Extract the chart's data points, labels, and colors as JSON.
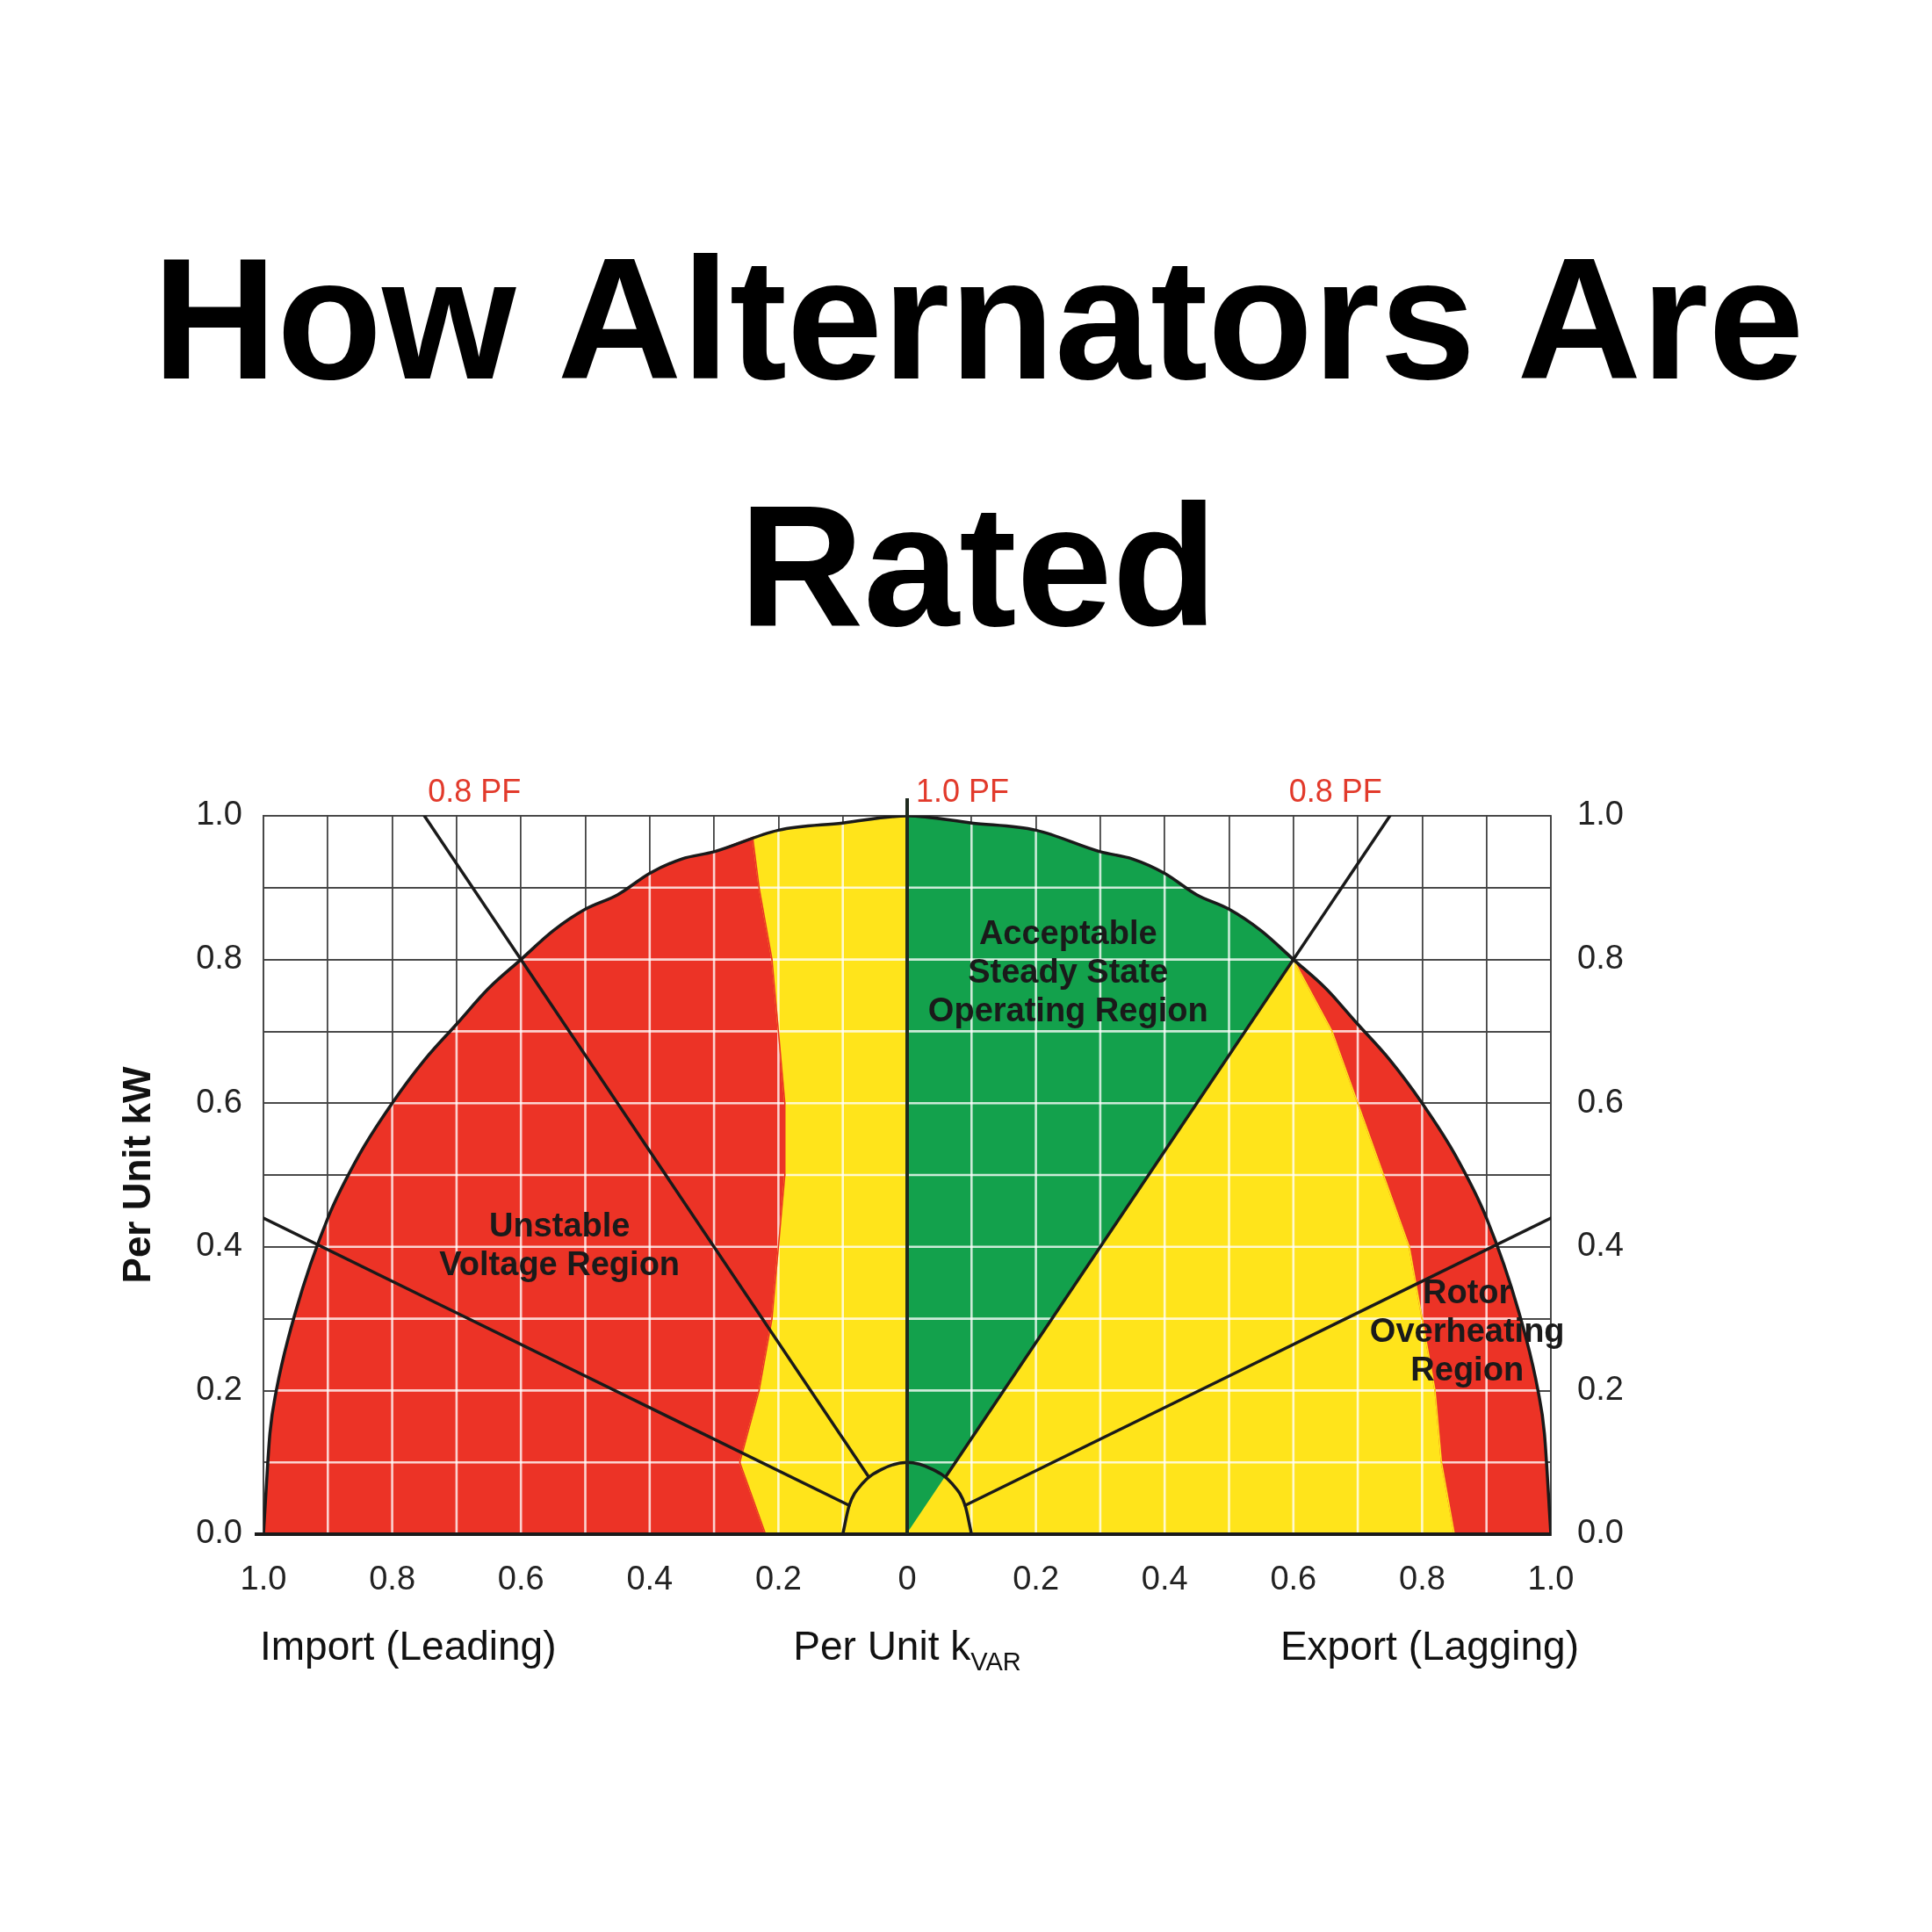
{
  "chart_data": {
    "type": "area",
    "title": "How Alternators Are Rated",
    "xlabel": "Per Unit k$_{VAR}$",
    "ylabel": "Per Unit kW",
    "xlim": [
      -1,
      1
    ],
    "ylim": [
      0,
      1
    ],
    "y2lim": [
      0,
      1
    ],
    "xticks": [
      {
        "value": -1,
        "label": "1.0"
      },
      {
        "value": -0.9,
        "label": null
      },
      {
        "value": -0.8,
        "label": "0.8"
      },
      {
        "value": -0.7,
        "label": null
      },
      {
        "value": -0.6,
        "label": "0.6"
      },
      {
        "value": -0.5,
        "label": null
      },
      {
        "value": -0.4,
        "label": "0.4"
      },
      {
        "value": -0.3,
        "label": null
      },
      {
        "value": -0.2,
        "label": "0.2"
      },
      {
        "value": -0.1,
        "label": null
      },
      0,
      {
        "value": 0.1,
        "label": null
      },
      0.2,
      {
        "value": 0.3,
        "label": null
      },
      0.4,
      {
        "value": 0.5,
        "label": null
      },
      0.6,
      {
        "value": 0.7,
        "label": null
      },
      0.8,
      {
        "value": 0.9,
        "label": null
      },
      {
        "value": 1,
        "label": "1.0"
      }
    ],
    "yticks": [
      {
        "value": 0,
        "label": "0.0"
      },
      {
        "value": 0.1,
        "label": null
      },
      0.2,
      {
        "value": 0.3,
        "label": null
      },
      0.4,
      {
        "value": 0.5,
        "label": null
      },
      0.6,
      {
        "value": 0.7,
        "label": null
      },
      0.8,
      {
        "value": 0.9,
        "label": null
      },
      {
        "value": 1,
        "label": "1.0"
      }
    ],
    "y2ticks": [
      {
        "value": 0,
        "label": "0.0"
      },
      {
        "value": 0.1,
        "label": null
      },
      0.2,
      {
        "value": 0.3,
        "label": null
      },
      0.4,
      {
        "value": 0.5,
        "label": null
      },
      0.6,
      {
        "value": 0.7,
        "label": null
      },
      0.8,
      {
        "value": 0.9,
        "label": null
      },
      {
        "value": 1,
        "label": "1.0"
      }
    ],
    "grid": true,
    "legend": false,
    "marker": "none",
    "ref_lines": [
      {
        "axis": "x",
        "value": 0,
        "label": "1.0 PF",
        "color": "#1f2a1f"
      }
    ],
    "annotations": [
      "Import (Leading)",
      "Export (Lagging)",
      "Unstable\nVoltage Region",
      "Acceptable\nSteady State\nOperating Region",
      "Rotor\nOverheating\nRegion"
    ],
    "series": [
      {
        "type": "area",
        "color": "#ec3326",
        "x": [
          -1,
          -0.99,
          -0.98,
          -0.95,
          -0.9,
          -0.85,
          -0.8,
          -0.75,
          -0.7,
          -0.65,
          -0.6,
          -0.55,
          -0.5,
          -0.45,
          -0.4,
          -0.35,
          -0.3,
          -0.24,
          -0.23,
          -0.21,
          -0.2,
          -0.19,
          -0.19,
          -0.2,
          -0.21,
          -0.23,
          -0.26,
          -0.24,
          -0.22
        ],
        "values": [
          0,
          0.14,
          0.2,
          0.31,
          0.44,
          0.53,
          0.6,
          0.66,
          0.71,
          0.76,
          0.8,
          0.84,
          0.87,
          0.89,
          0.92,
          0.94,
          0.95,
          0.97,
          0.9,
          0.8,
          0.7,
          0.6,
          0.5,
          0.4,
          0.3,
          0.2,
          0.1,
          0.05,
          0
        ]
      },
      {
        "type": "area",
        "color": "#ffe41b",
        "x": [
          -0.22,
          -0.24,
          -0.26,
          -0.23,
          -0.21,
          -0.2,
          -0.19,
          -0.19,
          -0.2,
          -0.21,
          -0.23,
          -0.24,
          -0.2,
          -0.1,
          0,
          0
        ],
        "values": [
          0,
          0.05,
          0.1,
          0.2,
          0.3,
          0.4,
          0.5,
          0.6,
          0.7,
          0.8,
          0.9,
          0.97,
          0.98,
          0.99,
          1,
          0
        ]
      },
      {
        "type": "area",
        "color": "#13a14c",
        "x": [
          0,
          0,
          0.1,
          0.2,
          0.3,
          0.35,
          0.4,
          0.45,
          0.5,
          0.55,
          0.6
        ],
        "values": [
          0,
          1,
          0.99,
          0.98,
          0.95,
          0.94,
          0.92,
          0.89,
          0.87,
          0.84,
          0.8
        ]
      },
      {
        "type": "area",
        "color": "#ffe41b",
        "x": [
          0,
          0.6,
          0.66,
          0.7,
          0.74,
          0.78,
          0.8,
          0.82,
          0.83,
          0.85
        ],
        "values": [
          0,
          0.8,
          0.7,
          0.6,
          0.5,
          0.4,
          0.3,
          0.2,
          0.1,
          0
        ]
      },
      {
        "type": "area",
        "color": "#ec3326",
        "x": [
          0.85,
          0.83,
          0.82,
          0.8,
          0.78,
          0.74,
          0.7,
          0.66,
          0.6,
          0.65,
          0.7,
          0.75,
          0.8,
          0.85,
          0.9,
          0.95,
          0.98,
          0.99,
          1
        ],
        "values": [
          0,
          0.1,
          0.2,
          0.3,
          0.4,
          0.5,
          0.6,
          0.7,
          0.8,
          0.76,
          0.71,
          0.66,
          0.6,
          0.53,
          0.44,
          0.31,
          0.2,
          0.14,
          0
        ]
      },
      {
        "type": "line",
        "color": "#1a1a1a",
        "x": [
          -1,
          -0.99,
          -0.98,
          -0.95,
          -0.9,
          -0.85,
          -0.8,
          -0.75,
          -0.7,
          -0.65,
          -0.6,
          -0.55,
          -0.5,
          -0.45,
          -0.4,
          -0.35,
          -0.3,
          -0.2,
          -0.1,
          0,
          0.1,
          0.2,
          0.3,
          0.35,
          0.4,
          0.45,
          0.5,
          0.55,
          0.6,
          0.65,
          0.7,
          0.75,
          0.8,
          0.85,
          0.9,
          0.95,
          0.98,
          0.99,
          1
        ],
        "values": [
          0,
          0.14,
          0.2,
          0.31,
          0.44,
          0.53,
          0.6,
          0.66,
          0.71,
          0.76,
          0.8,
          0.84,
          0.87,
          0.89,
          0.92,
          0.94,
          0.95,
          0.98,
          0.99,
          1,
          0.99,
          0.98,
          0.95,
          0.94,
          0.92,
          0.89,
          0.87,
          0.84,
          0.8,
          0.76,
          0.71,
          0.66,
          0.6,
          0.53,
          0.44,
          0.31,
          0.2,
          0.14,
          0
        ]
      },
      {
        "type": "line",
        "color": "#1a1a1a",
        "x": [
          -0.1,
          -0.09,
          -0.07,
          -0.04,
          0,
          0.04,
          0.07,
          0.09,
          0.1
        ],
        "values": [
          0,
          0.04,
          0.07,
          0.09,
          0.1,
          0.09,
          0.07,
          0.04,
          0
        ]
      },
      {
        "type": "line",
        "name": "0.8 PF",
        "color": "#1a1a1a",
        "x": [
          -0.06,
          -0.75
        ],
        "values": [
          0.08,
          1
        ]
      },
      {
        "type": "line",
        "name": "0.8 PF",
        "color": "#1a1a1a",
        "x": [
          0.06,
          0.75
        ],
        "values": [
          0.08,
          1
        ]
      },
      {
        "type": "line",
        "color": "#1a1a1a",
        "x": [
          -0.09,
          -1
        ],
        "values": [
          0.04,
          0.44
        ]
      },
      {
        "type": "line",
        "color": "#1a1a1a",
        "x": [
          0.09,
          1
        ],
        "values": [
          0.04,
          0.44
        ]
      }
    ]
  }
}
